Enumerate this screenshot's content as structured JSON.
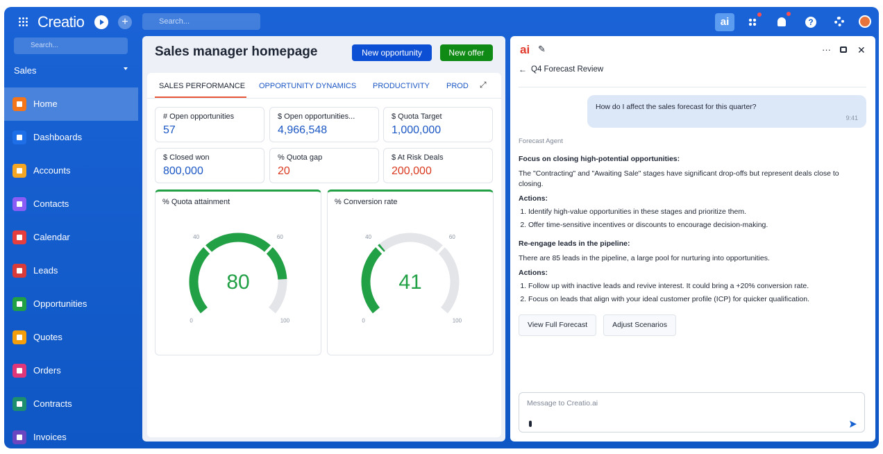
{
  "topbar": {
    "logo": "Creatio",
    "search": "Search...",
    "ai_button": "ai"
  },
  "sidebar": {
    "search": "Search...",
    "workspace": "Sales",
    "items": [
      "Home",
      "Dashboards",
      "Accounts",
      "Contacts",
      "Calendar",
      "Leads",
      "Opportunities",
      "Quotes",
      "Orders",
      "Contracts",
      "Invoices"
    ]
  },
  "main": {
    "title": "Sales manager homepage",
    "buttons": [
      "New opportunity",
      "New offer"
    ],
    "tabs": [
      "SALES PERFORMANCE",
      "OPPORTUNITY DYNAMICS",
      "PRODUCTIVITY",
      "PROD"
    ],
    "kpis": [
      {
        "label": "# Open opportunities",
        "value": "57"
      },
      {
        "label": "$ Open opportunities...",
        "value": "4,966,548"
      },
      {
        "label": "$ Quota Target",
        "value": "1,000,000"
      },
      {
        "label": "$ Closed won",
        "value": "800,000"
      },
      {
        "label": "% Quota gap",
        "value": "20"
      },
      {
        "label": "$ At Risk Deals",
        "value": "200,000"
      }
    ],
    "gauges": [
      {
        "title": "% Quota attainment",
        "value": 80,
        "ticks": [
          0,
          40,
          60,
          100
        ]
      },
      {
        "title": "% Conversion rate",
        "value": 41,
        "ticks": [
          0,
          40,
          60,
          100
        ]
      }
    ]
  },
  "assistant": {
    "logo": "ai",
    "title": "Q4 Forecast Review",
    "user_message": {
      "text": "How do I affect the sales forecast for this quarter?",
      "time": "9:41"
    },
    "agent": "Forecast Agent",
    "sections": [
      {
        "heading": "Focus on closing high-potential opportunities:",
        "text": "The \"Contracting\" and \"Awaiting Sale\" stages have significant drop-offs but represent deals close to closing.",
        "actions_label": "Actions:",
        "actions": [
          "Identify high-value opportunities in these stages and prioritize them.",
          "Offer time-sensitive incentives or discounts to encourage decision-making."
        ]
      },
      {
        "heading": "Re-engage leads in the pipeline:",
        "text": "There are 85 leads in the pipeline, a large pool for nurturing into opportunities.",
        "actions_label": "Actions:",
        "actions": [
          "Follow up with inactive leads and revive interest. It could bring a +20% conversion rate.",
          "Focus on leads that align with your ideal customer profile (ICP) for quicker qualification."
        ]
      }
    ],
    "buttons": [
      "View Full Forecast",
      "Adjust Scenarios"
    ],
    "input_placeholder": "Message to Creatio.ai"
  }
}
